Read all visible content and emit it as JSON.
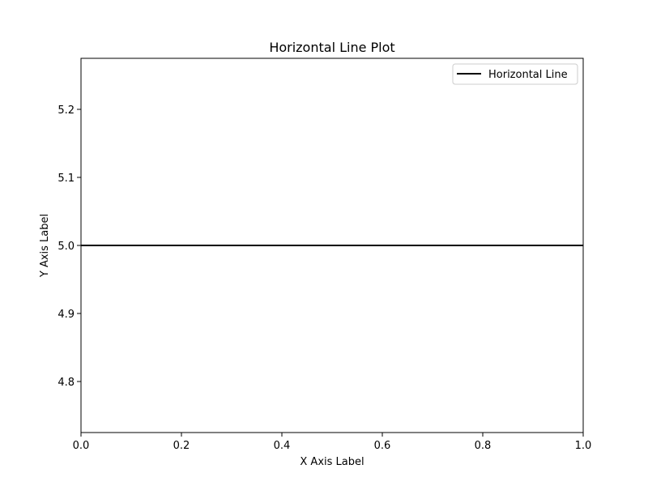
{
  "chart_data": {
    "type": "line",
    "title": "Horizontal Line Plot",
    "xlabel": "X Axis Label",
    "ylabel": "Y Axis Label",
    "xlim": [
      0.0,
      1.0
    ],
    "ylim": [
      4.725,
      5.275
    ],
    "x_ticks": [
      0.0,
      0.2,
      0.4,
      0.6,
      0.8,
      1.0
    ],
    "x_tick_labels": [
      "0.0",
      "0.2",
      "0.4",
      "0.6",
      "0.8",
      "1.0"
    ],
    "y_ticks": [
      4.8,
      4.9,
      5.0,
      5.1,
      5.2
    ],
    "y_tick_labels": [
      "4.8",
      "4.9",
      "5.0",
      "5.1",
      "5.2"
    ],
    "grid": false,
    "legend_position": "top-right",
    "series": [
      {
        "name": "Horizontal Line",
        "color": "#000000",
        "x": [
          0.0,
          1.0
        ],
        "y": [
          5.0,
          5.0
        ]
      }
    ]
  }
}
